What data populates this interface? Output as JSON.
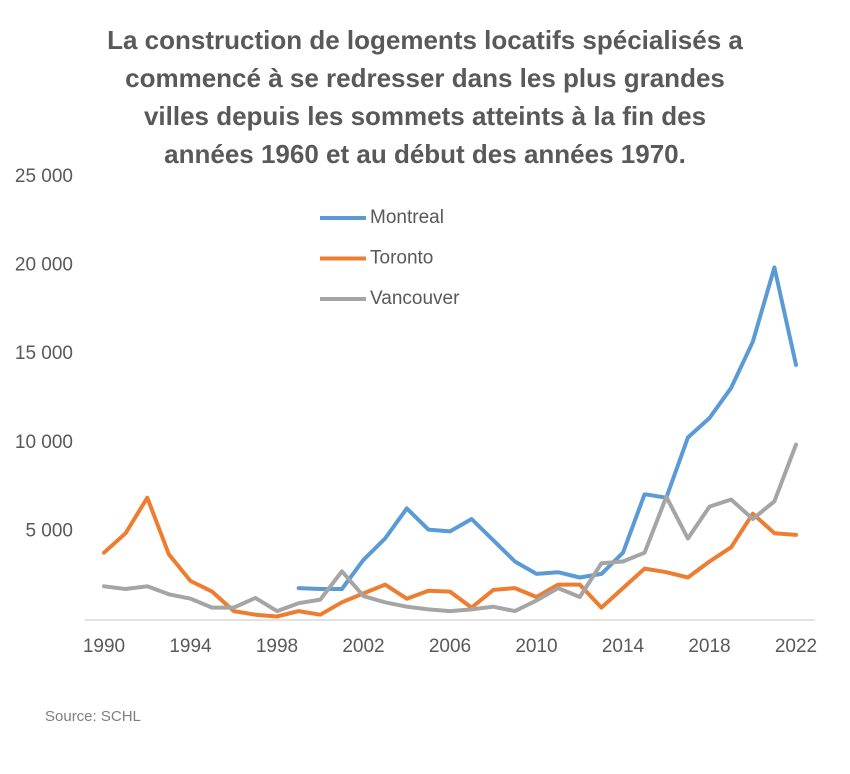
{
  "chart_data": {
    "type": "line",
    "title": [
      "La construction de logements locatifs spécialisés a",
      "commencé à se redresser dans les plus grandes",
      "villes depuis les sommets atteints à la fin des",
      "années 1960 et au début des années 1970."
    ],
    "x": [
      1990,
      1991,
      1992,
      1993,
      1994,
      1995,
      1996,
      1997,
      1998,
      1999,
      2000,
      2001,
      2002,
      2003,
      2004,
      2005,
      2006,
      2007,
      2008,
      2009,
      2010,
      2011,
      2012,
      2013,
      2014,
      2015,
      2016,
      2017,
      2018,
      2019,
      2020,
      2021,
      2022
    ],
    "series": [
      {
        "name": "Montreal",
        "color": "#5b9bd5",
        "values": [
          null,
          null,
          null,
          null,
          null,
          null,
          null,
          null,
          null,
          1800,
          1750,
          1750,
          3400,
          4600,
          6300,
          5100,
          5000,
          5700,
          4500,
          3300,
          2600,
          2700,
          2400,
          2600,
          3800,
          7100,
          6900,
          10300,
          11400,
          13100,
          15700,
          19900,
          14400
        ]
      },
      {
        "name": "Toronto",
        "color": "#ed7d31",
        "values": [
          3800,
          4900,
          6900,
          3700,
          2200,
          1600,
          500,
          300,
          200,
          500,
          300,
          1000,
          1500,
          2000,
          1200,
          1650,
          1600,
          700,
          1700,
          1800,
          1300,
          2000,
          2000,
          700,
          1800,
          2900,
          2700,
          2400,
          3300,
          4100,
          6000,
          4900,
          4800
        ]
      },
      {
        "name": "Vancouver",
        "color": "#a5a5a5",
        "values": [
          1900,
          1750,
          1900,
          1450,
          1200,
          700,
          700,
          1250,
          500,
          950,
          1150,
          2750,
          1350,
          1000,
          750,
          600,
          500,
          600,
          750,
          500,
          1100,
          1800,
          1300,
          3200,
          3300,
          3800,
          6950,
          4600,
          6400,
          6800,
          5700,
          6700,
          9900
        ]
      }
    ],
    "xlim": [
      1990,
      2022
    ],
    "xticks": [
      1990,
      1994,
      1998,
      2002,
      2006,
      2010,
      2014,
      2018,
      2022
    ],
    "ylim": [
      0,
      25000
    ],
    "yticks": [
      {
        "value": 5000,
        "label": "5 000"
      },
      {
        "value": 10000,
        "label": "10 000"
      },
      {
        "value": 15000,
        "label": "15 000"
      },
      {
        "value": 20000,
        "label": "20 000"
      },
      {
        "value": 25000,
        "label": "25 000"
      }
    ],
    "source": "Source: SCHL"
  }
}
